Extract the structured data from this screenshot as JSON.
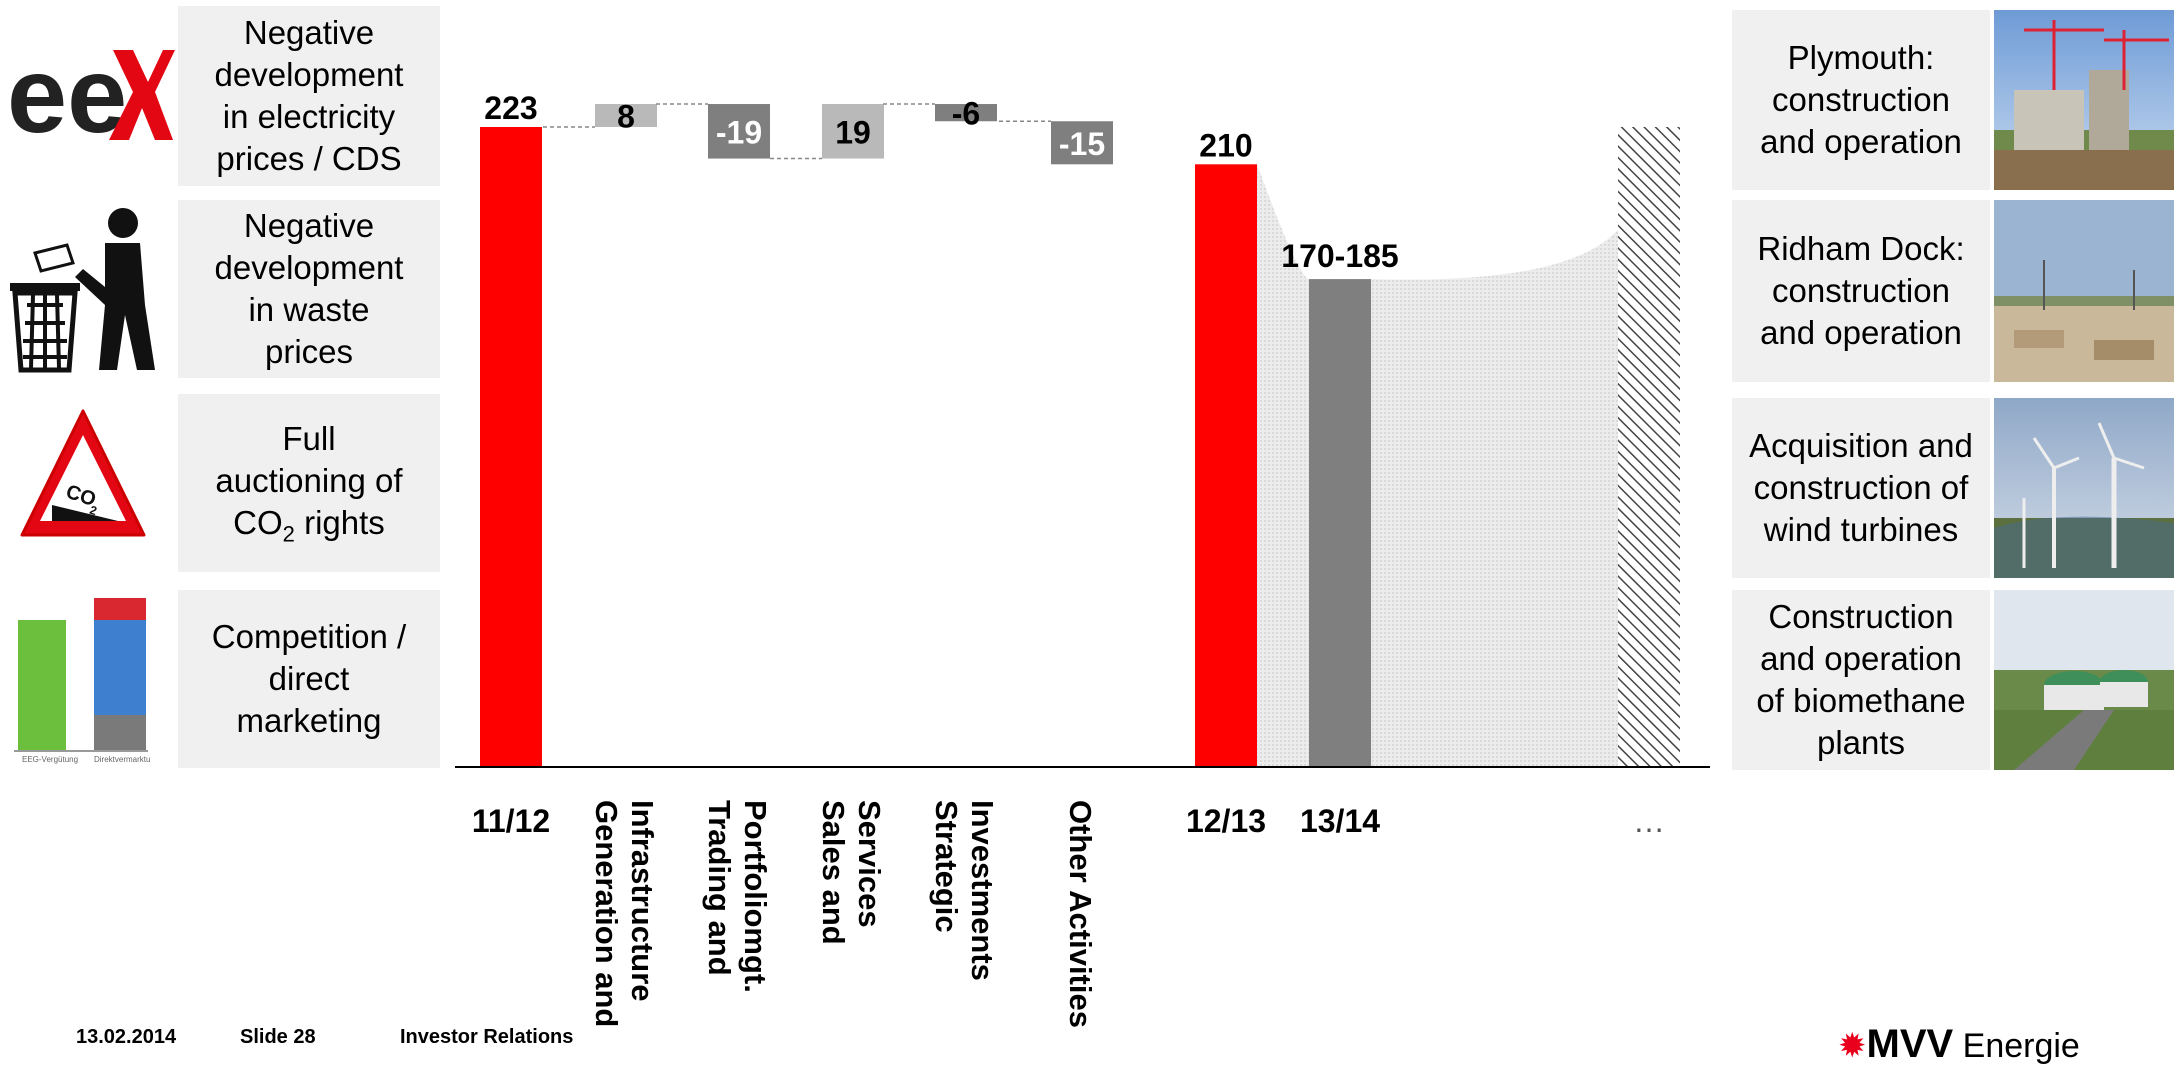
{
  "chart_data": {
    "type": "waterfall",
    "bars": [
      {
        "label": "11/12",
        "value": 223,
        "display": "223",
        "kind": "total"
      },
      {
        "label": "Generation and Infrastructure",
        "value": 8,
        "display": "8",
        "kind": "delta"
      },
      {
        "label": "Trading and Portfoliomgt.",
        "value": -19,
        "display": "-19",
        "kind": "delta"
      },
      {
        "label": "Sales and Services",
        "value": 19,
        "display": "19",
        "kind": "delta"
      },
      {
        "label": "Strategic Investments",
        "value": -6,
        "display": "-6",
        "kind": "delta"
      },
      {
        "label": "Other Activities",
        "value": -15,
        "display": "-15",
        "kind": "delta"
      },
      {
        "label": "12/13",
        "value": 210,
        "display": "210",
        "kind": "total"
      },
      {
        "label": "13/14",
        "value": 177.5,
        "range": [
          170,
          185
        ],
        "display": "170-185",
        "kind": "forecast"
      },
      {
        "label": "…",
        "value": 223,
        "display": "",
        "kind": "future"
      }
    ],
    "colors": {
      "total": "#ff0000",
      "delta_pos": "#b9b9b9",
      "delta_neg": "#7f7f7f",
      "forecast": "#7f7f7f",
      "band": "#e3e3e3",
      "future_hatch": "#555555"
    }
  },
  "left_factors": [
    {
      "text": "Negative\ndevelopment\nin electricity\nprices / CDS",
      "icon": "eex-logo-icon",
      "icon_text": "eeX"
    },
    {
      "text": "Negative\ndevelopment\nin waste\nprices",
      "icon": "litter-bin-icon"
    },
    {
      "text": "Full\nauctioning of\nCO",
      "sub": "2",
      "tail": " rights",
      "icon": "co2-warning-sign-icon",
      "icon_text": "CO2"
    },
    {
      "text": "Competition /\ndirect\nmarketing",
      "icon": "eeg-vs-direct-marketing-chart-icon"
    }
  ],
  "right_projects": [
    {
      "text": "Plymouth:\nconstruction\nand operation",
      "photo": "construction-site-photo"
    },
    {
      "text": "Ridham Dock:\nconstruction\nand operation",
      "photo": "construction-field-photo"
    },
    {
      "text": "Acquisition and\nconstruction of\nwind turbines",
      "photo": "wind-turbines-photo"
    },
    {
      "text": "Construction\nand operation\nof biomethane\nplants",
      "photo": "biomethane-plant-photo"
    }
  ],
  "footer": {
    "date": "13.02.2014",
    "slide": "Slide 28",
    "dept": "Investor Relations"
  },
  "logo": {
    "brand": "MVV",
    "suffix": "Energie"
  }
}
